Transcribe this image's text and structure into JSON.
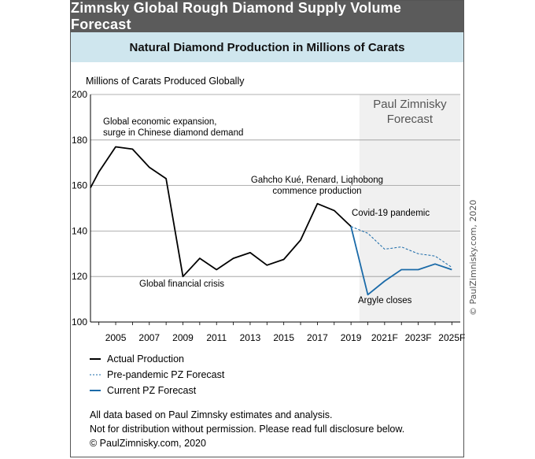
{
  "header": {
    "title": "Zimnsky Global Rough Diamond Supply Volume Forecast",
    "subtitle": "Natural Diamond Production in Millions of Carats"
  },
  "chart_data": {
    "type": "line",
    "title": "Zimnsky Global Rough Diamond Supply Volume Forecast",
    "subtitle": "Natural Diamond Production in Millions of Carats",
    "ylabel": "Millions of Carats Produced Globally",
    "xlabel": "",
    "ylim": [
      100,
      200
    ],
    "yticks": [
      100,
      120,
      140,
      160,
      180,
      200
    ],
    "xlim": [
      2003.5,
      2025.5
    ],
    "xticks": [
      {
        "value": 2005,
        "label": "2005"
      },
      {
        "value": 2007,
        "label": "2007"
      },
      {
        "value": 2009,
        "label": "2009"
      },
      {
        "value": 2011,
        "label": "2011"
      },
      {
        "value": 2013,
        "label": "2013"
      },
      {
        "value": 2015,
        "label": "2015"
      },
      {
        "value": 2017,
        "label": "2017"
      },
      {
        "value": 2019,
        "label": "2019"
      },
      {
        "value": 2021,
        "label": "2021F"
      },
      {
        "value": 2023,
        "label": "2023F"
      },
      {
        "value": 2025,
        "label": "2025F"
      }
    ],
    "grid": true,
    "forecast_region": {
      "from": 2019.5,
      "to": 2025.5,
      "label_line1": "Paul Zimnisky",
      "label_line2": "Forecast",
      "color": "#f0f0f0"
    },
    "series": [
      {
        "name": "Actual Production",
        "color": "#000000",
        "style": "solid",
        "points": [
          [
            2003.5,
            159
          ],
          [
            2004,
            166
          ],
          [
            2005,
            177
          ],
          [
            2006,
            176
          ],
          [
            2007,
            168
          ],
          [
            2008,
            163
          ],
          [
            2009,
            120
          ],
          [
            2010,
            128
          ],
          [
            2011,
            123
          ],
          [
            2012,
            128
          ],
          [
            2013,
            130.5
          ],
          [
            2014,
            125
          ],
          [
            2015,
            127.5
          ],
          [
            2016,
            136
          ],
          [
            2017,
            152
          ],
          [
            2018,
            149
          ],
          [
            2019,
            142
          ]
        ]
      },
      {
        "name": "Pre-pandemic PZ Forecast",
        "color": "#1a6aa8",
        "style": "dashed",
        "points": [
          [
            2019,
            142
          ],
          [
            2020,
            139
          ],
          [
            2021,
            132
          ],
          [
            2022,
            133
          ],
          [
            2023,
            130
          ],
          [
            2024,
            129
          ],
          [
            2025,
            124
          ]
        ]
      },
      {
        "name": "Current PZ Forecast",
        "color": "#1a6aa8",
        "style": "solid",
        "points": [
          [
            2019,
            142
          ],
          [
            2020,
            112
          ],
          [
            2021,
            118
          ],
          [
            2022,
            123
          ],
          [
            2023,
            123
          ],
          [
            2024,
            125.5
          ],
          [
            2025,
            123
          ]
        ]
      }
    ],
    "annotations": [
      {
        "id": "expansion",
        "lines": [
          "Global economic expansion,",
          "surge in Chinese diamond demand"
        ]
      },
      {
        "id": "gahcho",
        "lines": [
          "Gahcho Kué, Renard, Liqhobong",
          "commence production"
        ]
      },
      {
        "id": "crisis",
        "lines": [
          "Global financial crisis"
        ]
      },
      {
        "id": "covid",
        "lines": [
          "Covid-19 pandemic"
        ]
      },
      {
        "id": "argyle",
        "lines": [
          "Argyle closes"
        ]
      }
    ],
    "legend": {
      "position": "bottom-left"
    },
    "side_credit": "© PaulZimnisky.com, 2020"
  },
  "notes": {
    "line1": "All data based on Paul Zimnsky estimates and analysis.",
    "line2": "Not for distribution without permission. Please read full disclosure below.",
    "line3": "© PaulZimnisky.com, 2020"
  },
  "colors": {
    "title_bg": "#5b5b5b",
    "subtitle_bg": "#cfe6ee",
    "blue": "#1a6aa8",
    "forecast_bg": "#f0f0f0"
  }
}
